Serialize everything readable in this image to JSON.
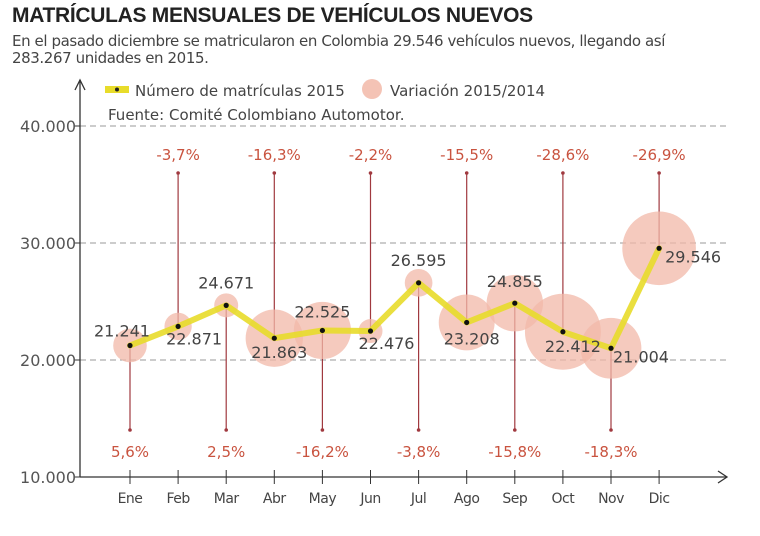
{
  "header": {
    "title": "MATRÍCULAS MENSUALES DE VEHÍCULOS NUEVOS",
    "subtitle": "En el pasado diciembre se matricularon en Colombia 29.546 vehículos nuevos, llegando así 283.267 unidades en 2015."
  },
  "colors": {
    "line": "#e8dc2a",
    "bubble": "#f2b8a8",
    "stem": "#a0393f",
    "pct_text": "#c9533f",
    "grid": "#999999"
  },
  "chart_data": {
    "type": "line",
    "title": "MATRÍCULAS MENSUALES DE VEHÍCULOS NUEVOS",
    "xlabel": "",
    "ylabel": "",
    "ylim": [
      10000,
      40000
    ],
    "yticks": [
      10000,
      20000,
      30000,
      40000
    ],
    "ytick_labels": [
      "10.000",
      "20.000",
      "30.000",
      "40.000"
    ],
    "grid": true,
    "legend": {
      "placement": "top-left",
      "entries": [
        "Número de matrículas 2015",
        "Variación 2015/2014"
      ],
      "source": "Fuente: Comité Colombiano Automotor."
    },
    "categories": [
      "Ene",
      "Feb",
      "Mar",
      "Abr",
      "May",
      "Jun",
      "Jul",
      "Ago",
      "Sep",
      "Oct",
      "Nov",
      "Dic"
    ],
    "series": [
      {
        "name": "Número de matrículas 2015",
        "values": [
          21241,
          22871,
          24671,
          21863,
          22525,
          22476,
          26595,
          23208,
          24855,
          22412,
          21004,
          29546
        ],
        "labels": [
          "21.241",
          "22.871",
          "24.671",
          "21.863",
          "22.525",
          "22.476",
          "26.595",
          "23.208",
          "24.855",
          "22.412",
          "21.004",
          "29.546"
        ]
      },
      {
        "name": "Variación 2015/2014",
        "values": [
          5.6,
          -3.7,
          2.5,
          -16.3,
          -16.2,
          -2.2,
          -3.8,
          -15.5,
          -15.8,
          -28.6,
          -18.3,
          -26.9
        ],
        "labels": [
          "5,6%",
          "-3,7%",
          "2,5%",
          "-16,3%",
          "-16,2%",
          "-2,2%",
          "-3,8%",
          "-15,5%",
          "-15,8%",
          "-28,6%",
          "-18,3%",
          "-26,9%"
        ]
      }
    ]
  }
}
